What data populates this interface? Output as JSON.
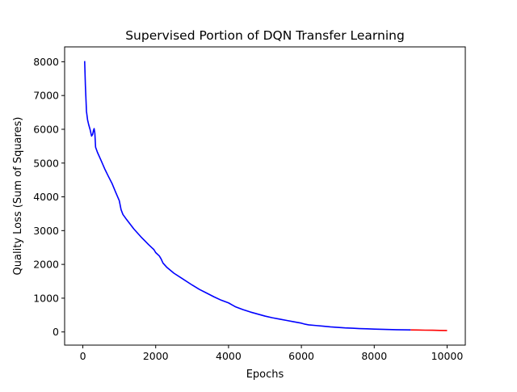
{
  "chart_data": {
    "type": "line",
    "title": "Supervised Portion of DQN Transfer Learning",
    "xlabel": "Epochs",
    "ylabel": "Quality Loss (Sum of Squares)",
    "xlim": [
      -500,
      10500
    ],
    "ylim": [
      -390,
      8440
    ],
    "x_ticks": [
      0,
      2000,
      4000,
      6000,
      8000,
      10000
    ],
    "x_tick_labels": [
      "0",
      "2000",
      "4000",
      "6000",
      "8000",
      "10000"
    ],
    "y_ticks": [
      0,
      1000,
      2000,
      3000,
      4000,
      5000,
      6000,
      7000,
      8000
    ],
    "y_tick_labels": [
      "0",
      "1000",
      "2000",
      "3000",
      "4000",
      "5000",
      "6000",
      "7000",
      "8000"
    ],
    "grid": false,
    "legend": "none",
    "series": [
      {
        "color": "#0000ff",
        "points": [
          [
            50,
            8020
          ],
          [
            70,
            7300
          ],
          [
            100,
            6530
          ],
          [
            130,
            6280
          ],
          [
            160,
            6140
          ],
          [
            200,
            5990
          ],
          [
            240,
            5800
          ],
          [
            270,
            5850
          ],
          [
            290,
            5960
          ],
          [
            310,
            6020
          ],
          [
            330,
            5880
          ],
          [
            350,
            5470
          ],
          [
            400,
            5320
          ],
          [
            500,
            5080
          ],
          [
            600,
            4830
          ],
          [
            700,
            4610
          ],
          [
            800,
            4400
          ],
          [
            900,
            4140
          ],
          [
            1000,
            3890
          ],
          [
            1050,
            3620
          ],
          [
            1100,
            3480
          ],
          [
            1200,
            3330
          ],
          [
            1300,
            3190
          ],
          [
            1400,
            3050
          ],
          [
            1500,
            2930
          ],
          [
            1600,
            2810
          ],
          [
            1700,
            2700
          ],
          [
            1800,
            2590
          ],
          [
            1900,
            2490
          ],
          [
            1950,
            2440
          ],
          [
            2000,
            2350
          ],
          [
            2100,
            2250
          ],
          [
            2150,
            2160
          ],
          [
            2200,
            2040
          ],
          [
            2300,
            1920
          ],
          [
            2400,
            1830
          ],
          [
            2500,
            1740
          ],
          [
            2700,
            1600
          ],
          [
            3000,
            1390
          ],
          [
            3200,
            1260
          ],
          [
            3400,
            1150
          ],
          [
            3600,
            1040
          ],
          [
            3800,
            940
          ],
          [
            4000,
            860
          ],
          [
            4100,
            800
          ],
          [
            4200,
            740
          ],
          [
            4400,
            660
          ],
          [
            4600,
            590
          ],
          [
            4800,
            530
          ],
          [
            5000,
            470
          ],
          [
            5200,
            420
          ],
          [
            5400,
            380
          ],
          [
            5600,
            340
          ],
          [
            5800,
            300
          ],
          [
            6000,
            260
          ],
          [
            6100,
            230
          ],
          [
            6200,
            210
          ],
          [
            6400,
            190
          ],
          [
            6600,
            170
          ],
          [
            6800,
            150
          ],
          [
            7000,
            135
          ],
          [
            7200,
            120
          ],
          [
            7400,
            110
          ],
          [
            7600,
            100
          ],
          [
            7800,
            92
          ],
          [
            8000,
            85
          ],
          [
            8200,
            78
          ],
          [
            8400,
            72
          ],
          [
            8600,
            66
          ],
          [
            8800,
            62
          ],
          [
            9000,
            60
          ]
        ]
      },
      {
        "color": "#ff0000",
        "points": [
          [
            9000,
            60
          ],
          [
            9200,
            57
          ],
          [
            9400,
            53
          ],
          [
            9600,
            50
          ],
          [
            9800,
            46
          ],
          [
            10000,
            43
          ]
        ]
      }
    ]
  }
}
